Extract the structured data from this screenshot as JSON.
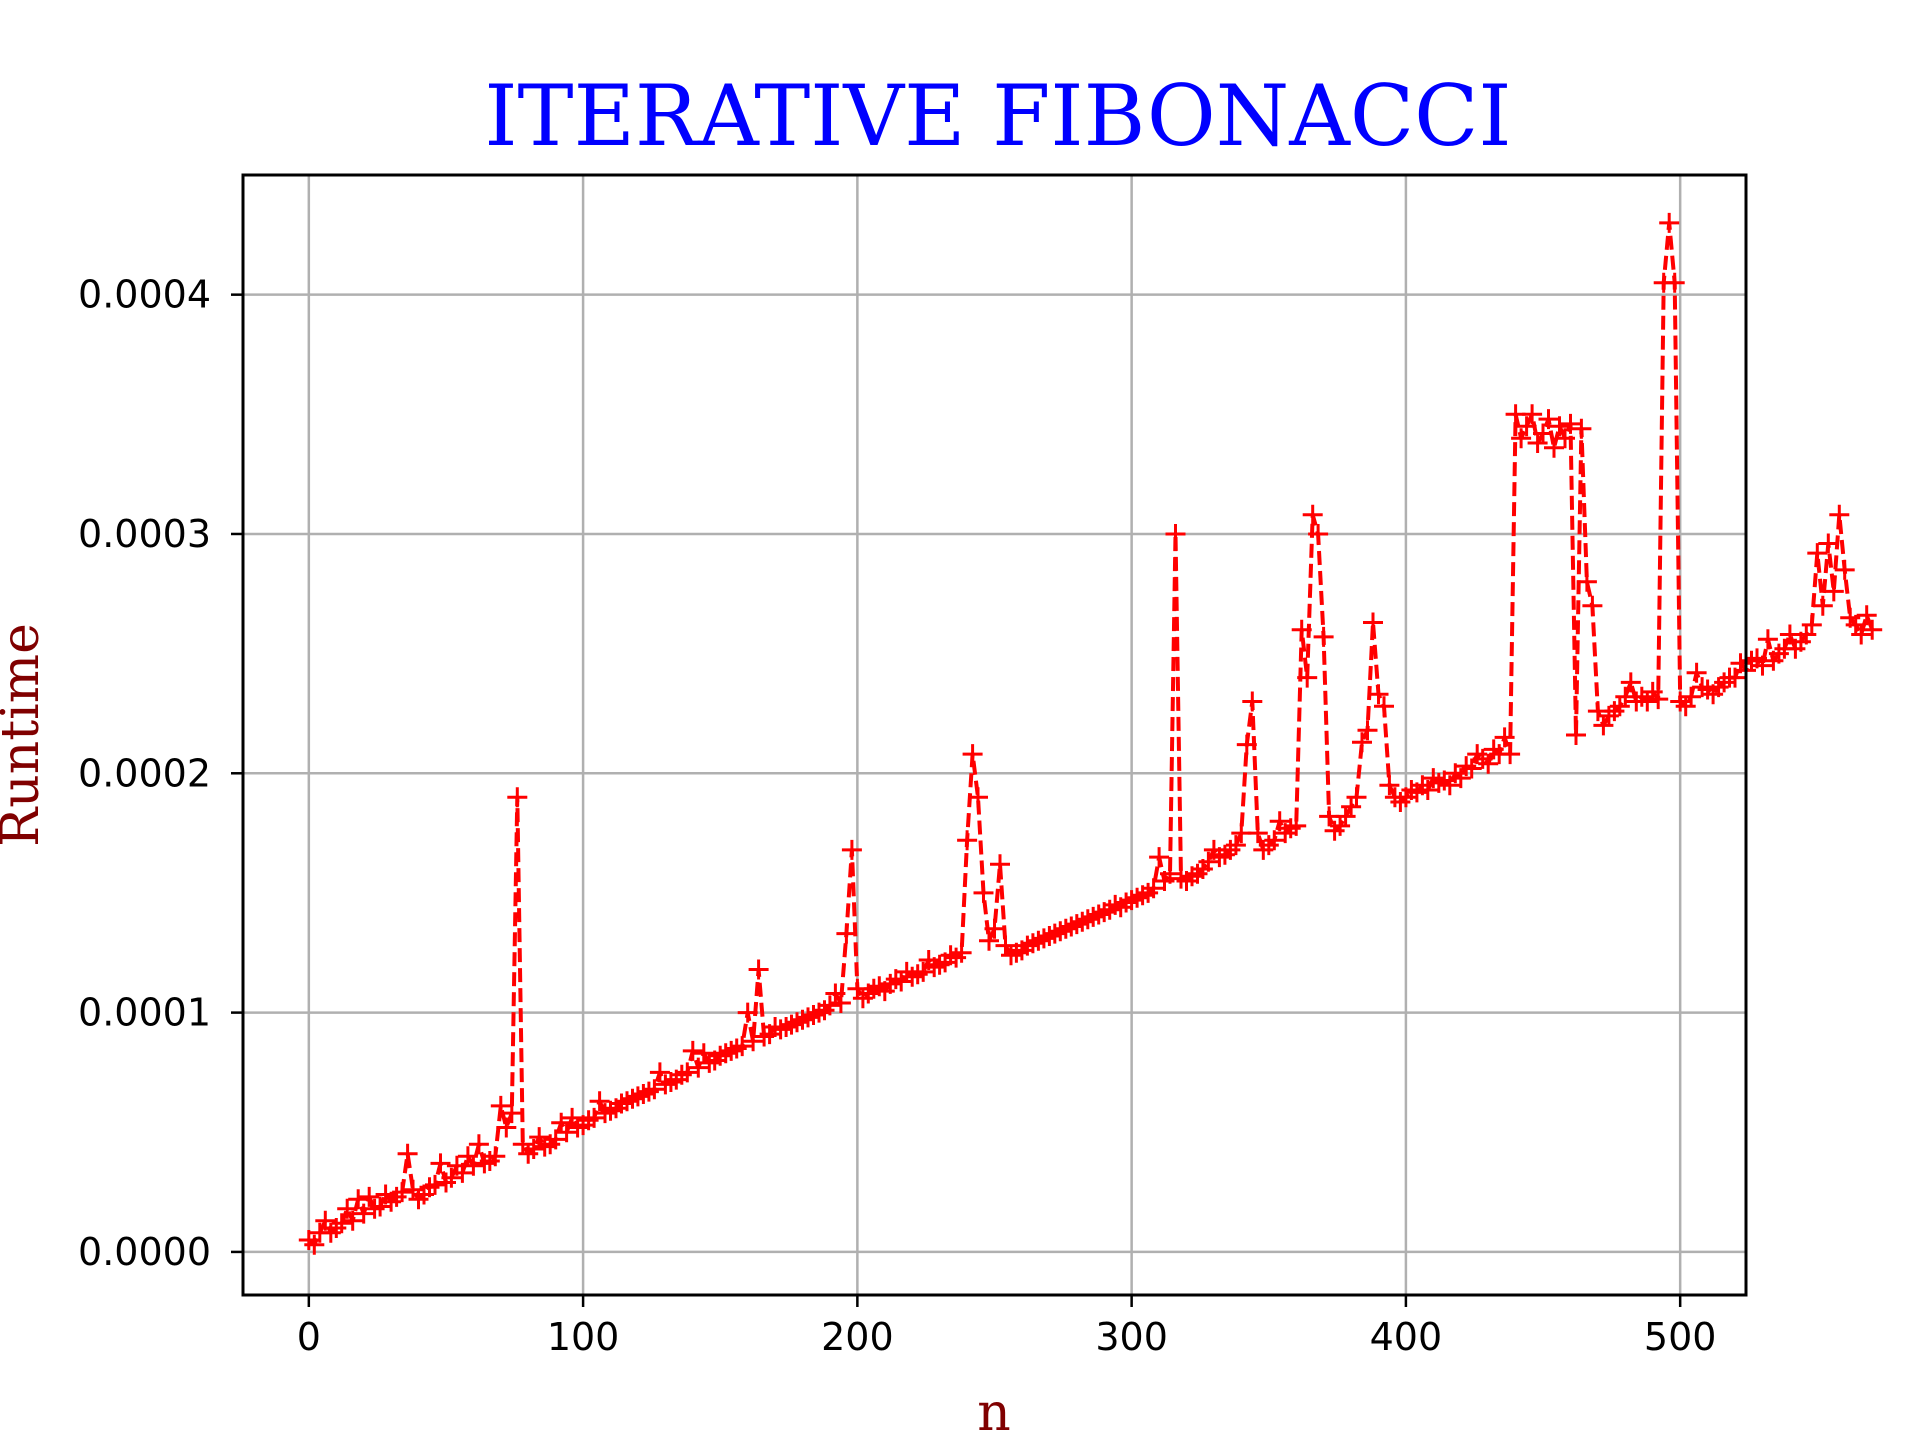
{
  "chart_data": {
    "type": "line",
    "title": "ITERATIVE FIBONACCI",
    "xlabel": "n",
    "ylabel": "Runtime",
    "xlim": [
      -24,
      524
    ],
    "ylim": [
      -1.8e-05,
      0.00045
    ],
    "xticks": [
      0,
      100,
      200,
      300,
      400,
      500
    ],
    "xtick_labels": [
      "0",
      "100",
      "200",
      "300",
      "400",
      "500"
    ],
    "yticks": [
      0,
      0.0001,
      0.0002,
      0.0003,
      0.0004
    ],
    "ytick_labels": [
      "0.0000",
      "0.0001",
      "0.0002",
      "0.0003",
      "0.0004"
    ],
    "grid": true,
    "legend": "none",
    "colors": {
      "title": "#0000ff",
      "axis_label": "#800000",
      "series": "#ff0000",
      "grid": "#b0b0b0"
    },
    "series": [
      {
        "marker": "+",
        "linestyle": "dashed",
        "n_start": 0,
        "n_step": 2,
        "values": [
          5e-06,
          3e-06,
          8e-06,
          1.3e-05,
          8e-06,
          1e-05,
          1.2e-05,
          1.8e-05,
          1.3e-05,
          2.2e-05,
          1.6e-05,
          2.3e-05,
          1.8e-05,
          1.9e-05,
          2.4e-05,
          2.1e-05,
          2.3e-05,
          2.5e-05,
          4.1e-05,
          2.6e-05,
          2.2e-05,
          2.4e-05,
          2.7e-05,
          2.8e-05,
          3.7e-05,
          2.9e-05,
          3.1e-05,
          3.6e-05,
          3.3e-05,
          4e-05,
          3.6e-05,
          4.5e-05,
          3.7e-05,
          3.8e-05,
          4e-05,
          6.1e-05,
          5.2e-05,
          5.8e-05,
          0.00019,
          4.5e-05,
          4.1e-05,
          4.3e-05,
          4.8e-05,
          4.4e-05,
          4.5e-05,
          4.7e-05,
          5.4e-05,
          5e-05,
          5.6e-05,
          5.2e-05,
          5.3e-05,
          5.5e-05,
          5.6e-05,
          6.3e-05,
          5.8e-05,
          5.9e-05,
          6e-05,
          6.2e-05,
          6.3e-05,
          6.4e-05,
          6.5e-05,
          6.6e-05,
          6.7e-05,
          6.8e-05,
          7.5e-05,
          7e-05,
          7.1e-05,
          7.2e-05,
          7.4e-05,
          7.5e-05,
          8.4e-05,
          7.7e-05,
          8.3e-05,
          7.9e-05,
          8e-05,
          8.2e-05,
          8.3e-05,
          8.4e-05,
          8.5e-05,
          8.6e-05,
          0.0001,
          8.8e-05,
          0.000118,
          9e-05,
          9.1e-05,
          9.4e-05,
          9.3e-05,
          9.4e-05,
          9.5e-05,
          9.6e-05,
          9.7e-05,
          9.8e-05,
          9.9e-05,
          0.0001,
          0.000101,
          0.000103,
          0.000108,
          0.000104,
          0.000133,
          0.000168,
          0.00011,
          0.000106,
          0.000108,
          0.00011,
          0.000111,
          0.000109,
          0.000112,
          0.000114,
          0.000113,
          0.000117,
          0.000115,
          0.000116,
          0.000117,
          0.000122,
          0.000119,
          0.00012,
          0.000121,
          0.000124,
          0.000123,
          0.000125,
          0.000172,
          0.000208,
          0.00019,
          0.00015,
          0.00013,
          0.000135,
          0.000162,
          0.000128,
          0.000124,
          0.000125,
          0.000126,
          0.000128,
          0.000129,
          0.00013,
          0.000131,
          0.000132,
          0.000133,
          0.000134,
          0.000135,
          0.000136,
          0.000137,
          0.000138,
          0.000139,
          0.00014,
          0.000141,
          0.000142,
          0.000143,
          0.000145,
          0.000144,
          0.000146,
          0.000147,
          0.000148,
          0.000149,
          0.00015,
          0.000152,
          0.000165,
          0.000155,
          0.000158,
          0.0003,
          0.000156,
          0.000155,
          0.000157,
          0.000158,
          0.00016,
          0.000163,
          0.000168,
          0.000165,
          0.000166,
          0.000168,
          0.00017,
          0.000175,
          0.000212,
          0.00023,
          0.000175,
          0.000168,
          0.00017,
          0.000172,
          0.00018,
          0.000175,
          0.000177,
          0.000178,
          0.00026,
          0.00024,
          0.000308,
          0.0003,
          0.000257,
          0.000182,
          0.000176,
          0.000178,
          0.000182,
          0.000186,
          0.00019,
          0.000213,
          0.000218,
          0.000263,
          0.000233,
          0.000228,
          0.000195,
          0.00019,
          0.000188,
          0.00019,
          0.000193,
          0.000192,
          0.000195,
          0.000193,
          0.000198,
          0.000196,
          0.000197,
          0.000195,
          0.0002,
          0.000198,
          0.000203,
          0.000202,
          0.000208,
          0.000206,
          0.000204,
          0.00021,
          0.000208,
          0.000215,
          0.000208,
          0.00035,
          0.00034,
          0.000345,
          0.00035,
          0.000338,
          0.000342,
          0.000348,
          0.000336,
          0.000345,
          0.00034,
          0.000346,
          0.000216,
          0.000344,
          0.00028,
          0.00027,
          0.000226,
          0.00022,
          0.000224,
          0.000226,
          0.000228,
          0.000232,
          0.000238,
          0.00023,
          0.000232,
          0.00023,
          0.000234,
          0.000231,
          0.000405,
          0.00043,
          0.000405,
          0.00023,
          0.000228,
          0.000232,
          0.000242,
          0.000236,
          0.000235,
          0.000233,
          0.000236,
          0.000238,
          0.00024,
          0.00024,
          0.000246,
          0.000243,
          0.000247,
          0.000248,
          0.000245,
          0.000256,
          0.000247,
          0.00025,
          0.000252,
          0.000258,
          0.000252,
          0.000255,
          0.000258,
          0.000262,
          0.000292,
          0.00027,
          0.000296,
          0.000276,
          0.000308,
          0.000285,
          0.000265,
          0.000262,
          0.000258,
          0.000266,
          0.00026
        ]
      }
    ]
  }
}
